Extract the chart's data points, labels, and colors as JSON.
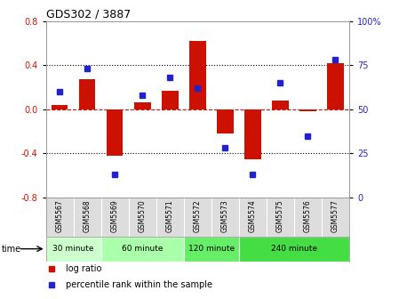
{
  "title": "GDS302 / 3887",
  "samples": [
    "GSM5567",
    "GSM5568",
    "GSM5569",
    "GSM5570",
    "GSM5571",
    "GSM5572",
    "GSM5573",
    "GSM5574",
    "GSM5575",
    "GSM5576",
    "GSM5577"
  ],
  "log_ratio": [
    0.04,
    0.27,
    -0.42,
    0.06,
    0.17,
    0.62,
    -0.22,
    -0.45,
    0.08,
    -0.02,
    0.42
  ],
  "percentile": [
    60,
    73,
    13,
    58,
    68,
    62,
    28,
    13,
    65,
    35,
    78
  ],
  "groups": [
    {
      "label": "30 minute",
      "start": 0,
      "end": 1,
      "color": "#ccffcc"
    },
    {
      "label": "60 minute",
      "start": 2,
      "end": 4,
      "color": "#aaffaa"
    },
    {
      "label": "120 minute",
      "start": 5,
      "end": 6,
      "color": "#66ee66"
    },
    {
      "label": "240 minute",
      "start": 7,
      "end": 10,
      "color": "#44dd44"
    }
  ],
  "bar_color": "#cc1100",
  "dot_color": "#2222cc",
  "ylim": [
    -0.8,
    0.8
  ],
  "y2lim": [
    0,
    100
  ],
  "yticks": [
    -0.8,
    -0.4,
    0.0,
    0.4,
    0.8
  ],
  "y2ticks": [
    0,
    25,
    50,
    75,
    100
  ],
  "hline_color": "#cc1100",
  "dotted_color": "black",
  "bg_color": "white"
}
